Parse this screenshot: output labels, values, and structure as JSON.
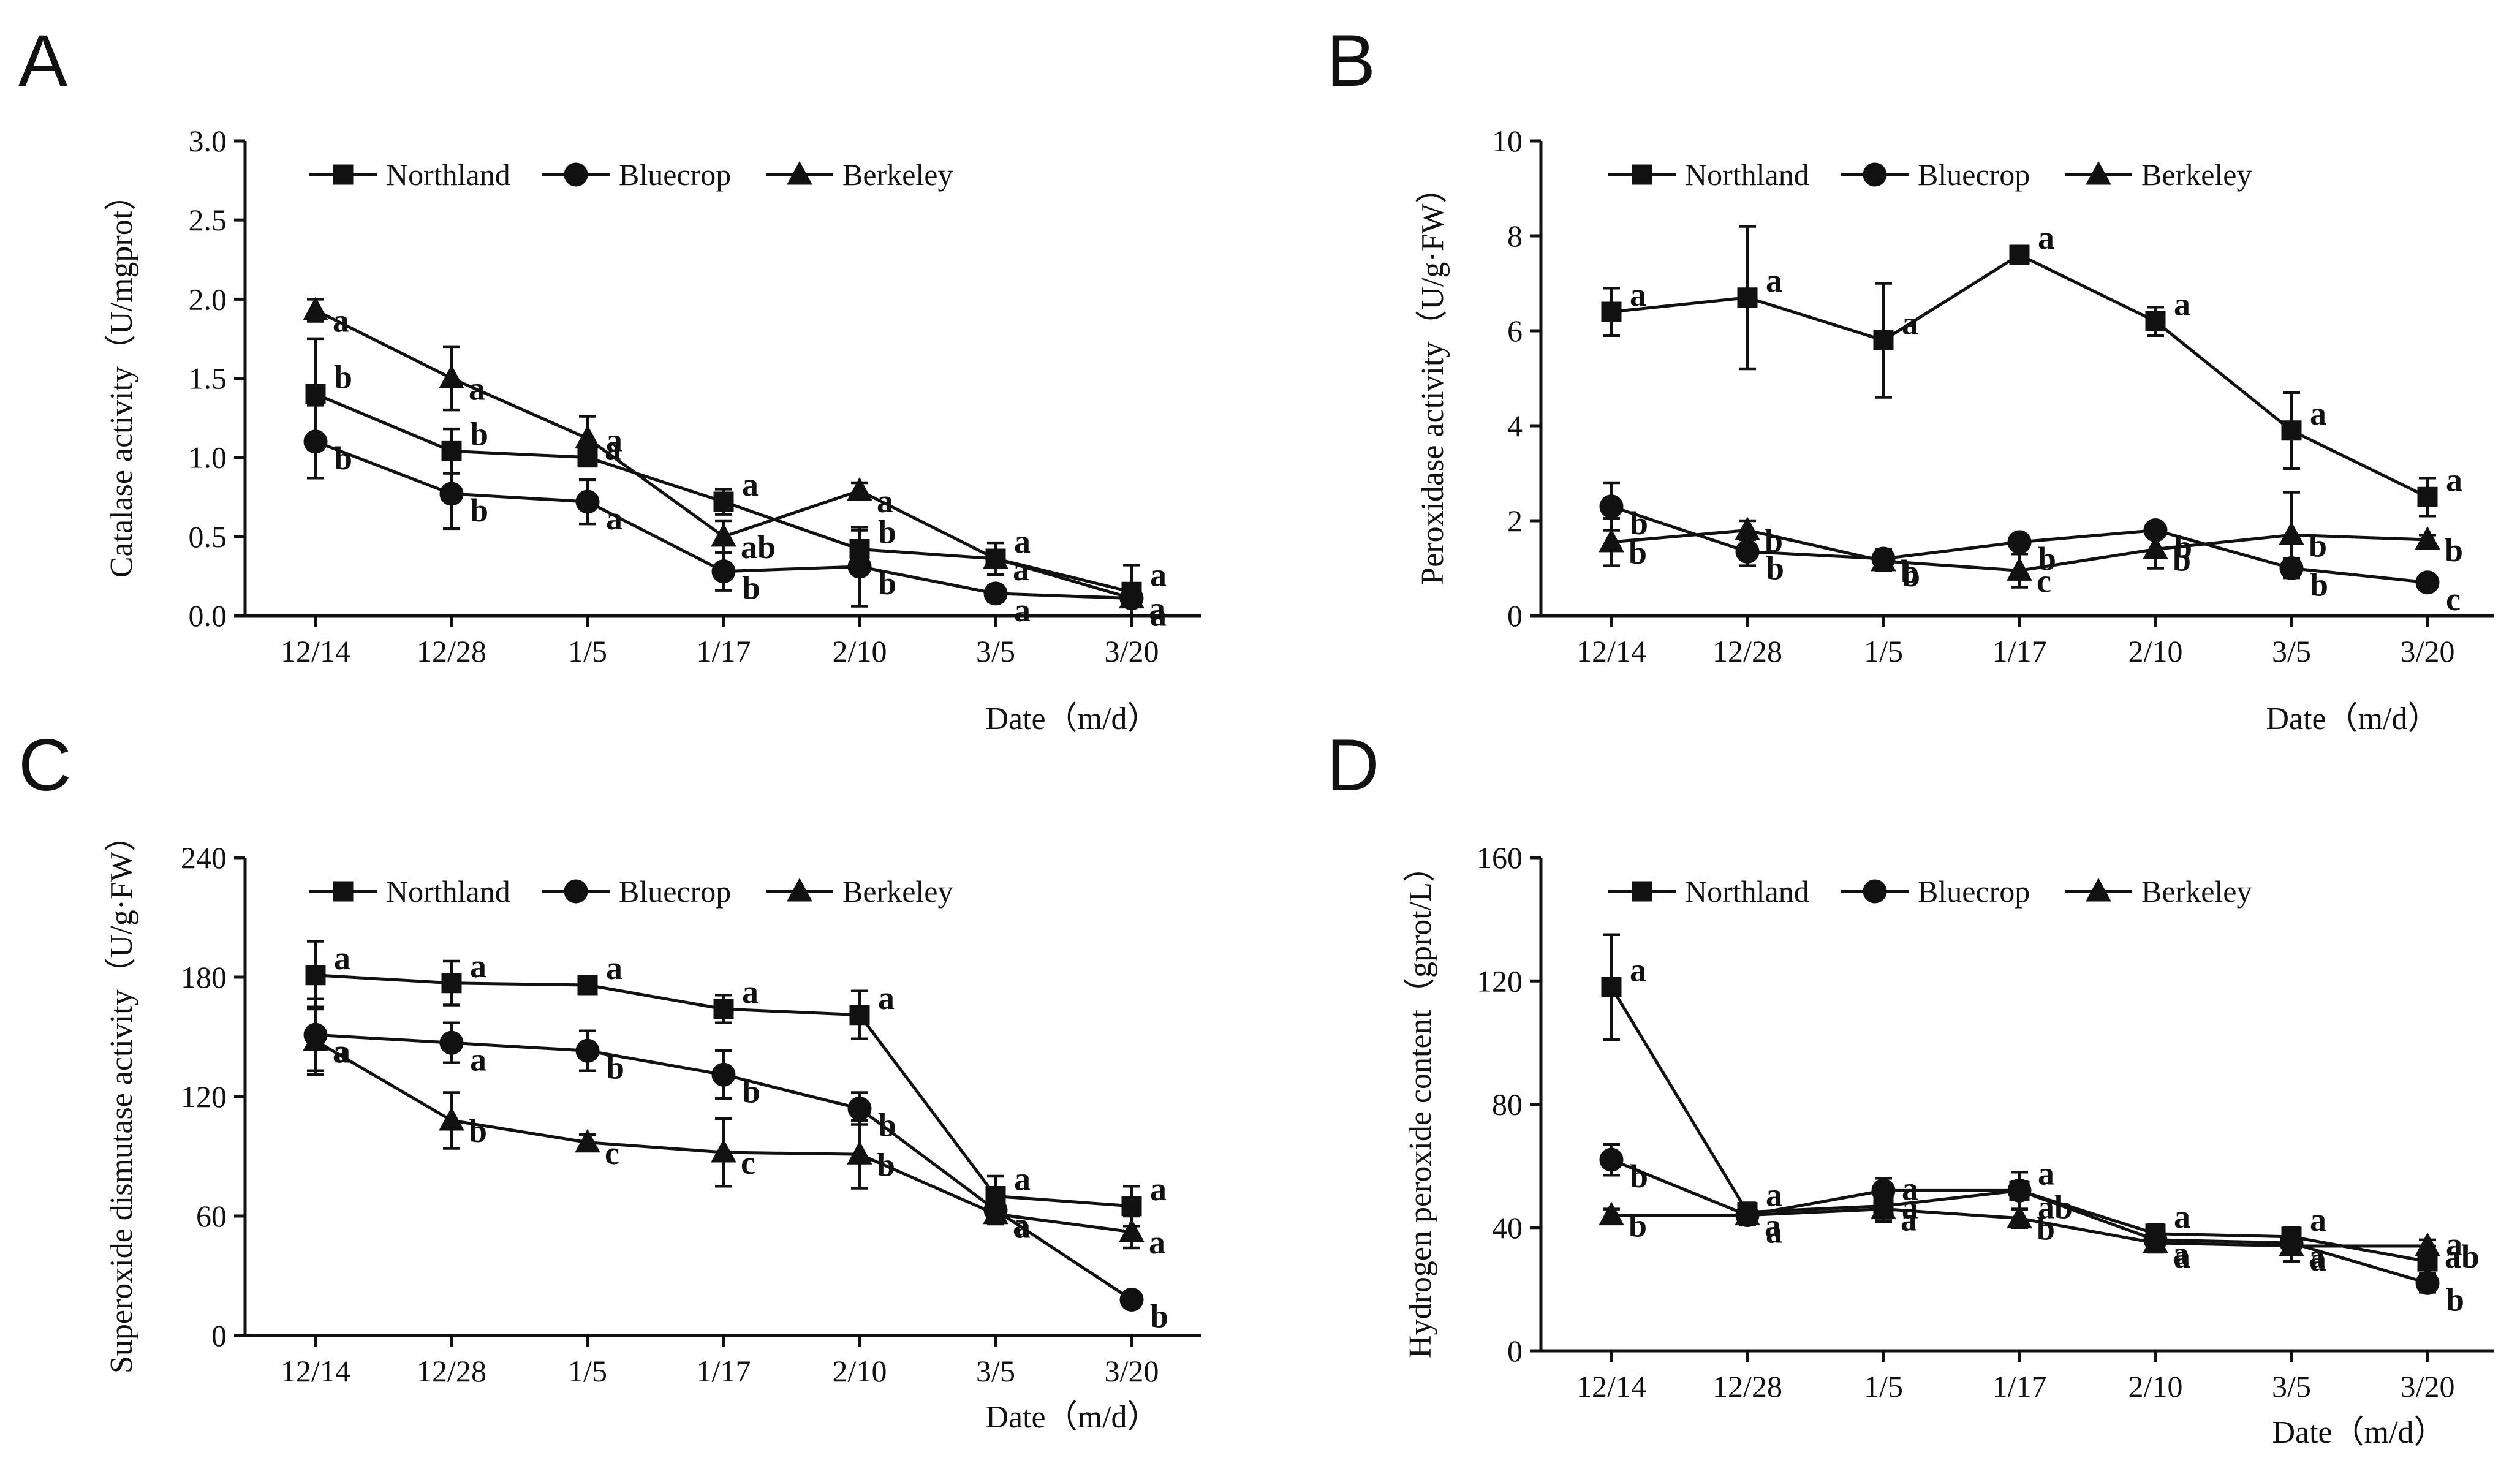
{
  "figure": {
    "legend_series": [
      "Northland",
      "Bluecrop",
      "Berkeley"
    ]
  },
  "chart_data": [
    {
      "panel": "A",
      "type": "line",
      "ylabel": "Catalase activity（U/mgprot）",
      "xlabel": "Date（m/d）",
      "categories": [
        "12/14",
        "12/28",
        "1/5",
        "1/17",
        "2/10",
        "3/5",
        "3/20"
      ],
      "ylim": [
        0,
        3.0
      ],
      "yticks": [
        "0.0",
        "0.5",
        "1.0",
        "1.5",
        "2.0",
        "2.5",
        "3.0"
      ],
      "legend": [
        "Northland",
        "Bluecrop",
        "Berkeley"
      ],
      "series": [
        {
          "name": "Northland",
          "marker": "square",
          "values": [
            1.4,
            1.04,
            1.0,
            0.72,
            0.42,
            0.36,
            0.15
          ],
          "errors": [
            0.35,
            0.14,
            0.05,
            0.08,
            0.12,
            0.1,
            0.17
          ],
          "sig": [
            "b",
            "b",
            "a",
            "a",
            "b",
            "a",
            "a"
          ]
        },
        {
          "name": "Bluecrop",
          "marker": "circle",
          "values": [
            1.1,
            0.77,
            0.72,
            0.28,
            0.31,
            0.14,
            0.11
          ],
          "errors": [
            0.23,
            0.22,
            0.14,
            0.12,
            0.25,
            0.05,
            0.04
          ],
          "sig": [
            "b",
            "b",
            "a",
            "b",
            "b",
            "a",
            "a"
          ]
        },
        {
          "name": "Berkeley",
          "marker": "triangle",
          "values": [
            1.93,
            1.5,
            1.12,
            0.5,
            0.79,
            0.36,
            0.11
          ],
          "errors": [
            0.07,
            0.2,
            0.14,
            0.1,
            0.05,
            0.05,
            0.03
          ],
          "sig": [
            "a",
            "a",
            "a",
            "ab",
            "a",
            "a",
            "a"
          ]
        }
      ]
    },
    {
      "panel": "B",
      "type": "line",
      "ylabel": "Peroxidase activity（U/g·FW）",
      "xlabel": "Date（m/d）",
      "categories": [
        "12/14",
        "12/28",
        "1/5",
        "1/17",
        "2/10",
        "3/5",
        "3/20"
      ],
      "ylim": [
        0,
        10
      ],
      "yticks": [
        "0",
        "2",
        "4",
        "6",
        "8",
        "10"
      ],
      "legend": [
        "Northland",
        "Bluecrop",
        "Berkeley"
      ],
      "series": [
        {
          "name": "Northland",
          "marker": "square",
          "values": [
            6.4,
            6.7,
            5.8,
            7.6,
            6.2,
            3.9,
            2.5
          ],
          "errors": [
            0.5,
            1.5,
            1.2,
            0.1,
            0.3,
            0.8,
            0.4
          ],
          "sig": [
            "a",
            "a",
            "a",
            "a",
            "a",
            "a",
            "a"
          ]
        },
        {
          "name": "Bluecrop",
          "marker": "circle",
          "values": [
            2.3,
            1.35,
            1.2,
            1.55,
            1.8,
            1.0,
            0.7
          ],
          "errors": [
            0.5,
            0.3,
            0.2,
            0.1,
            0.1,
            0.2,
            0.05
          ],
          "sig": [
            "b",
            "b",
            "b",
            "b",
            "b",
            "b",
            "c"
          ]
        },
        {
          "name": "Berkeley",
          "marker": "triangle",
          "values": [
            1.55,
            1.8,
            1.15,
            0.95,
            1.4,
            1.7,
            1.6
          ],
          "errors": [
            0.5,
            0.2,
            0.2,
            0.35,
            0.4,
            0.9,
            0.1
          ],
          "sig": [
            "b",
            "b",
            "b",
            "c",
            "b",
            "b",
            "b"
          ]
        }
      ]
    },
    {
      "panel": "C",
      "type": "line",
      "ylabel": "Superoxide dismutase activity（U/g·FW）",
      "xlabel": "Date（m/d）",
      "categories": [
        "12/14",
        "12/28",
        "1/5",
        "1/17",
        "2/10",
        "3/5",
        "3/20"
      ],
      "ylim": [
        0,
        240
      ],
      "yticks": [
        "0",
        "60",
        "120",
        "180",
        "240"
      ],
      "legend": [
        "Northland",
        "Bluecrop",
        "Berkeley"
      ],
      "series": [
        {
          "name": "Northland",
          "marker": "square",
          "values": [
            181,
            177,
            176,
            164,
            161,
            70,
            65
          ],
          "errors": [
            17,
            11,
            4,
            7,
            12,
            10,
            10
          ],
          "sig": [
            "a",
            "a",
            "a",
            "a",
            "a",
            "a",
            "a"
          ]
        },
        {
          "name": "Bluecrop",
          "marker": "circle",
          "values": [
            151,
            147,
            143,
            131,
            114,
            63,
            18
          ],
          "errors": [
            18,
            10,
            10,
            12,
            8,
            5,
            3
          ],
          "sig": [
            "a",
            "a",
            "b",
            "b",
            "b",
            "a",
            "b"
          ]
        },
        {
          "name": "Berkeley",
          "marker": "triangle",
          "values": [
            148,
            108,
            97,
            92,
            91,
            61,
            52
          ],
          "errors": [
            17,
            14,
            4,
            17,
            17,
            5,
            8
          ],
          "sig": [
            "a",
            "b",
            "c",
            "c",
            "b",
            "a",
            "a"
          ]
        }
      ]
    },
    {
      "panel": "D",
      "type": "line",
      "ylabel": "Hydrogen peroxide content（gprot/L）",
      "xlabel": "Date（m/d）",
      "categories": [
        "12/14",
        "12/28",
        "1/5",
        "1/17",
        "2/10",
        "3/5",
        "3/20"
      ],
      "ylim": [
        0,
        160
      ],
      "yticks": [
        "0",
        "40",
        "80",
        "120",
        "160"
      ],
      "legend": [
        "Northland",
        "Bluecrop",
        "Berkeley"
      ],
      "series": [
        {
          "name": "Northland",
          "marker": "square",
          "values": [
            118,
            45,
            47,
            52,
            38,
            37,
            29
          ],
          "errors": [
            17,
            3,
            4,
            6,
            3,
            3,
            5
          ],
          "sig": [
            "a",
            "a",
            "a",
            "a",
            "a",
            "a",
            "a"
          ]
        },
        {
          "name": "Bluecrop",
          "marker": "circle",
          "values": [
            62,
            44,
            52,
            52,
            36,
            35,
            22
          ],
          "errors": [
            5,
            3,
            4,
            3,
            3,
            3,
            3
          ],
          "sig": [
            "b",
            "a",
            "a",
            "ab",
            "a",
            "a",
            "b"
          ]
        },
        {
          "name": "Berkeley",
          "marker": "triangle",
          "values": [
            44,
            44,
            46,
            43,
            35,
            34,
            34
          ],
          "errors": [
            2,
            2,
            4,
            3,
            3,
            5,
            2
          ],
          "sig": [
            "b",
            "a",
            "a",
            "b",
            "a",
            "a",
            "ab"
          ]
        }
      ]
    }
  ]
}
